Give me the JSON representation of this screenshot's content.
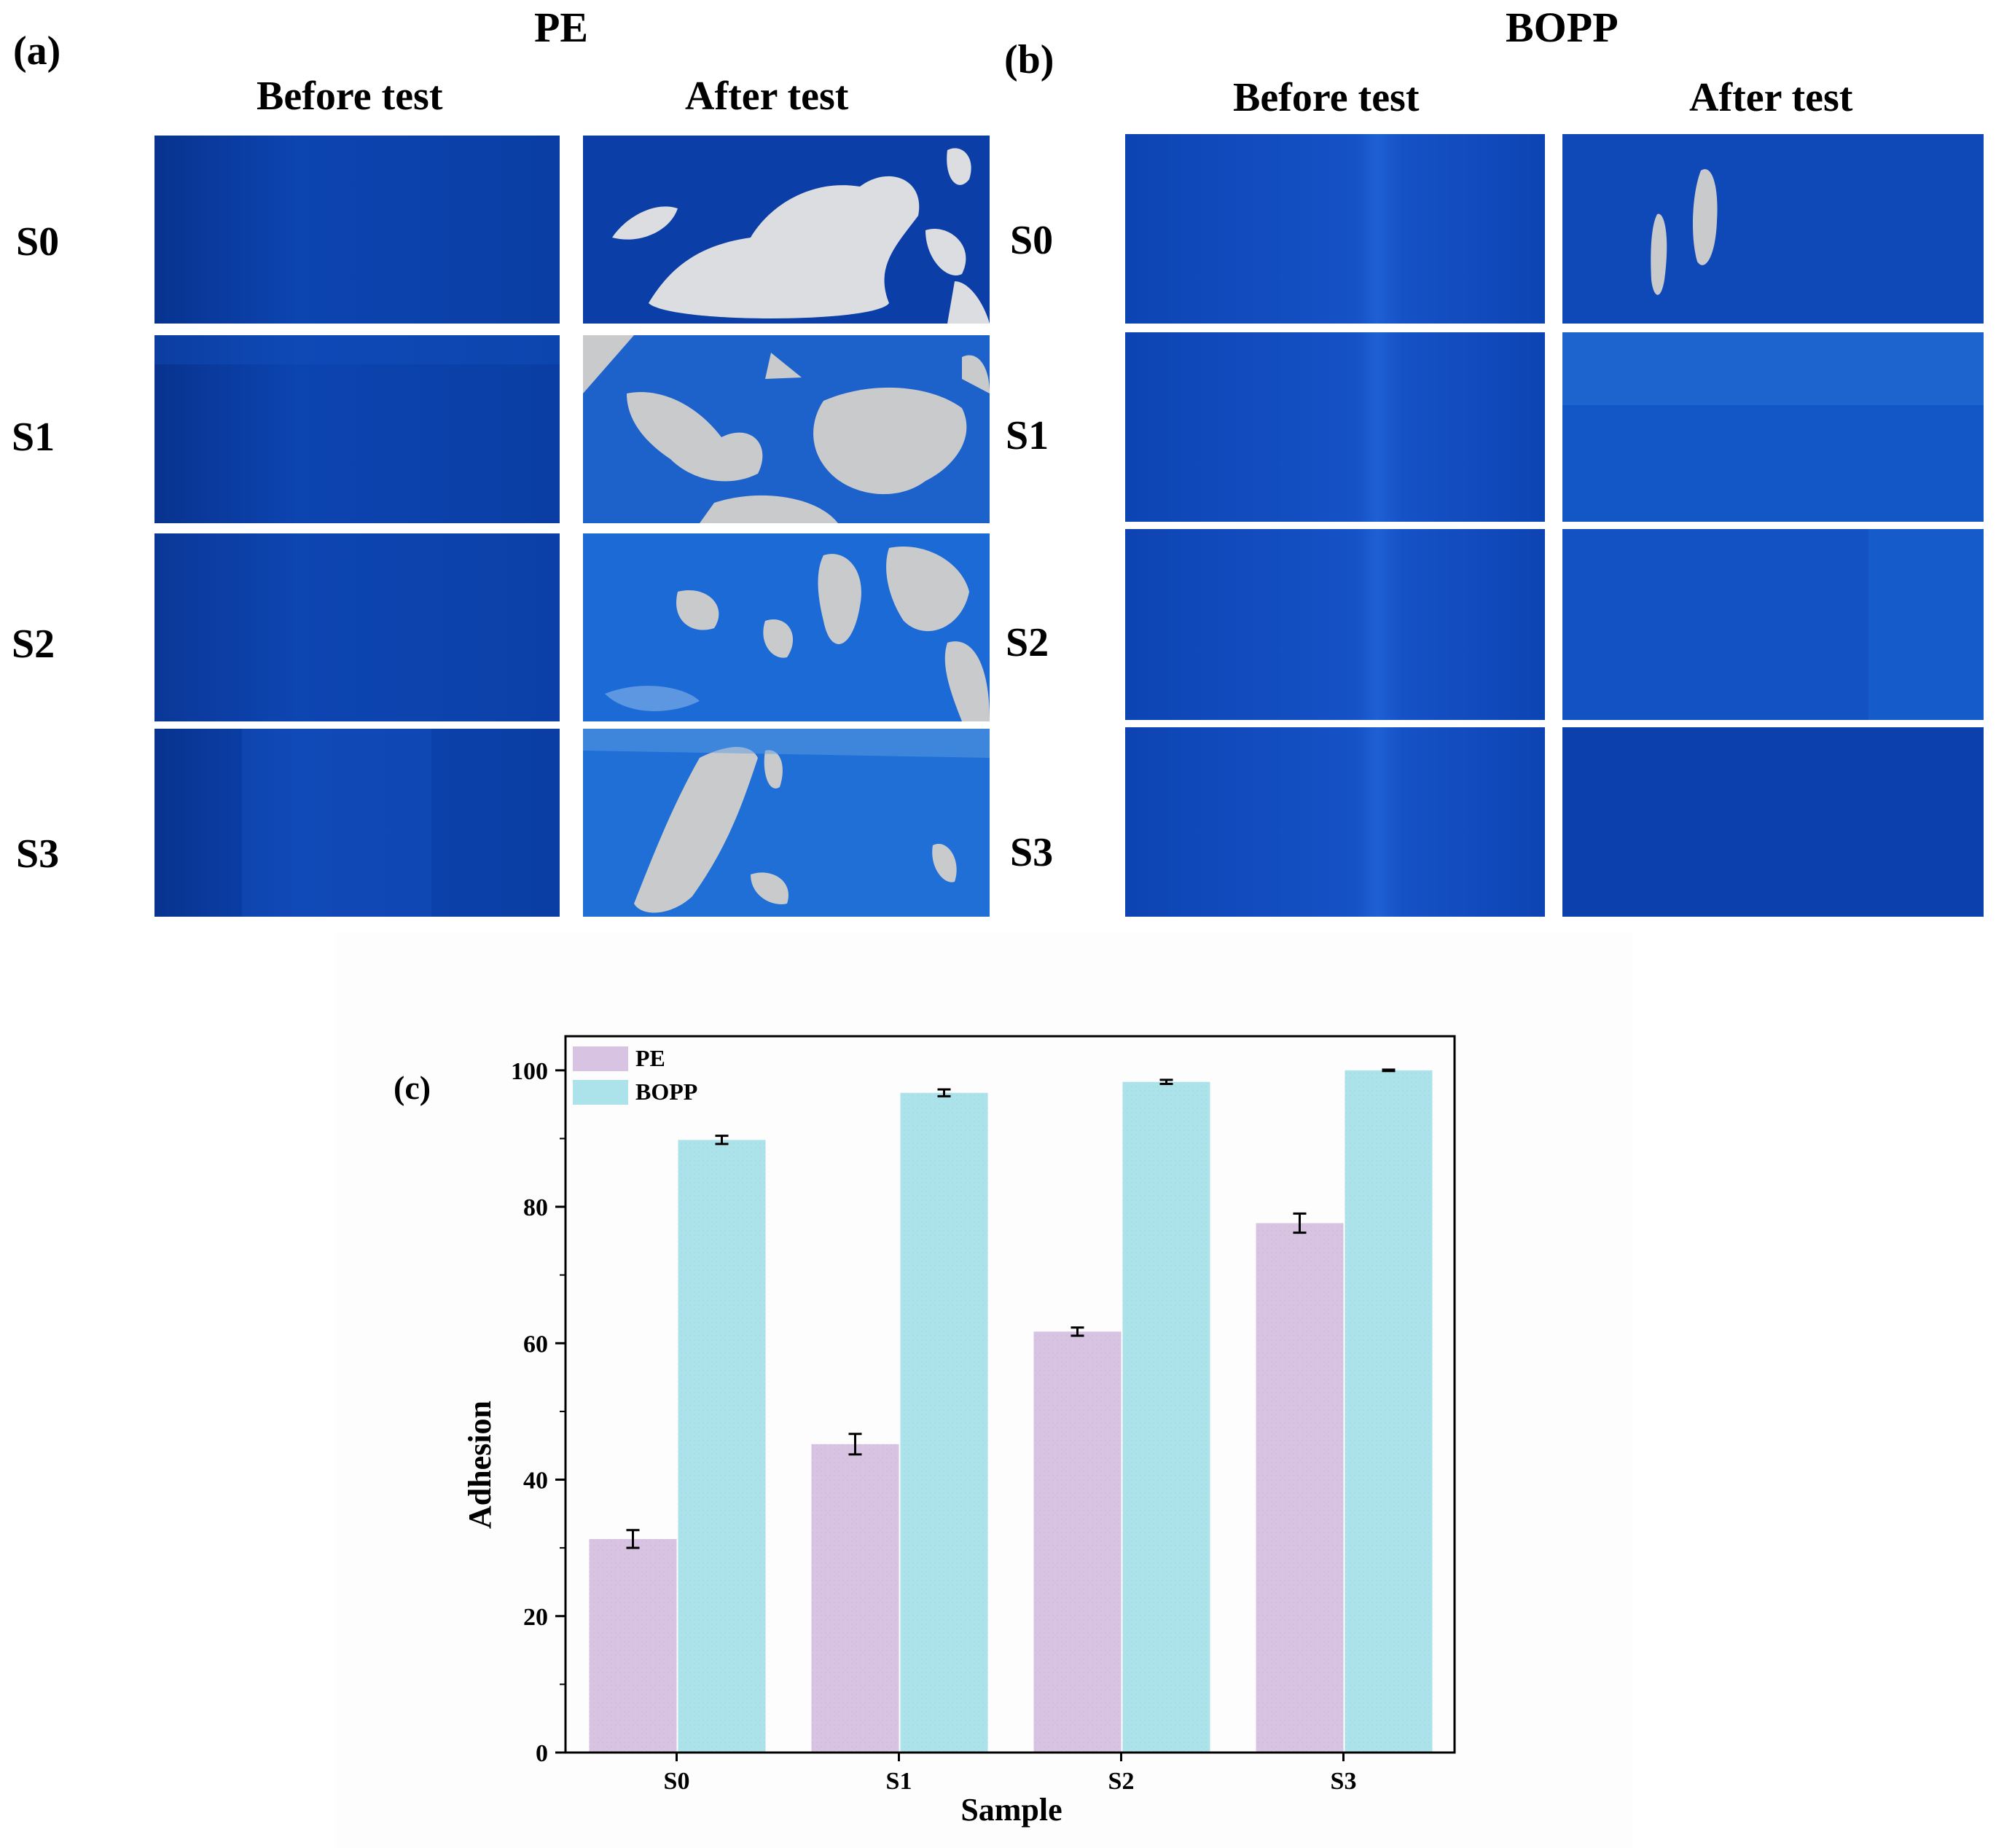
{
  "panel_a": {
    "letter": "(a)",
    "material": "PE",
    "col_before": "Before test",
    "col_after": "After test",
    "rows": [
      "S0",
      "S1",
      "S2",
      "S3"
    ]
  },
  "panel_b": {
    "letter": "(b)",
    "material": "BOPP",
    "col_before": "Before test",
    "col_after": "After test",
    "rows": [
      "S0",
      "S1",
      "S2",
      "S3"
    ]
  },
  "colors": {
    "film_blue": "#0b3fa8",
    "film_blue_light": "#1f66d1",
    "exposed_substrate": "#dcdde0",
    "pe_bar": "#d9c3e3",
    "bopp_bar": "#ace3ea"
  },
  "chart_data": {
    "type": "bar",
    "panel_label": "(c)",
    "xlabel": "Sample",
    "ylabel": "Adhesion",
    "categories": [
      "S0",
      "S1",
      "S2",
      "S3"
    ],
    "ylim": [
      0,
      105
    ],
    "yticks": [
      0,
      20,
      40,
      60,
      80,
      100
    ],
    "legend_position": "top-left",
    "grid": false,
    "series": [
      {
        "name": "PE",
        "color": "#d9c3e3",
        "values": [
          31.3,
          45.2,
          61.7,
          77.6
        ],
        "errors": [
          1.3,
          1.5,
          0.6,
          1.4
        ]
      },
      {
        "name": "BOPP",
        "color": "#ace3ea",
        "values": [
          89.8,
          96.7,
          98.3,
          100.0
        ],
        "errors": [
          0.6,
          0.5,
          0.3,
          0.1
        ]
      }
    ]
  }
}
